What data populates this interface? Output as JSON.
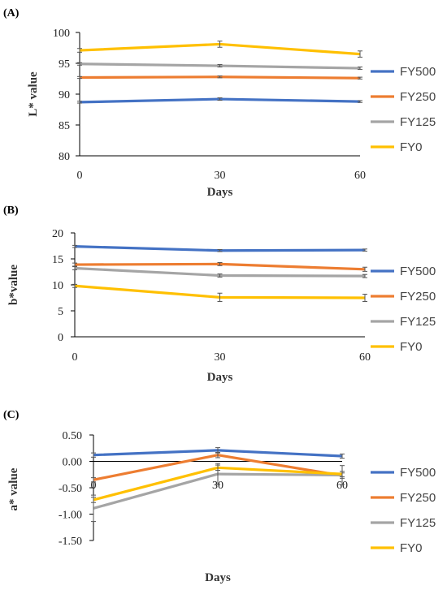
{
  "chart_data": [
    {
      "panel_label": "(A)",
      "type": "line",
      "x": [
        0,
        30,
        60
      ],
      "xlabel": "Days",
      "ylabel": "L* value",
      "xticks": [
        "0",
        "30",
        "60"
      ],
      "yticks": [
        "80",
        "85",
        "90",
        "95",
        "100"
      ],
      "ylim": [
        80,
        100
      ],
      "grid": false,
      "legend": "right",
      "series": [
        {
          "name": "FY500",
          "color": "#4472C4",
          "values": [
            88.7,
            89.2,
            88.8
          ],
          "errors": [
            0.15,
            0.2,
            0.15
          ]
        },
        {
          "name": "FY250",
          "color": "#ED7D31",
          "values": [
            92.7,
            92.8,
            92.6
          ],
          "errors": [
            0.15,
            0.15,
            0.15
          ]
        },
        {
          "name": "FY125",
          "color": "#A5A5A5",
          "values": [
            94.9,
            94.6,
            94.2
          ],
          "errors": [
            0.2,
            0.2,
            0.2
          ]
        },
        {
          "name": "FY0",
          "color": "#FFC000",
          "values": [
            97.1,
            98.1,
            96.5
          ],
          "errors": [
            0.3,
            0.5,
            0.5
          ]
        }
      ]
    },
    {
      "panel_label": "(B)",
      "type": "line",
      "x": [
        0,
        30,
        60
      ],
      "xlabel": "Days",
      "ylabel": "b*value",
      "xticks": [
        "0",
        "30",
        "60"
      ],
      "yticks": [
        "0",
        "5",
        "10",
        "15",
        "20"
      ],
      "ylim": [
        0,
        20
      ],
      "grid": false,
      "legend": "right",
      "series": [
        {
          "name": "FY500",
          "color": "#4472C4",
          "values": [
            17.4,
            16.6,
            16.7
          ],
          "errors": [
            0.2,
            0.2,
            0.2
          ]
        },
        {
          "name": "FY250",
          "color": "#ED7D31",
          "values": [
            13.9,
            14.0,
            13.0
          ],
          "errors": [
            0.3,
            0.3,
            0.4
          ]
        },
        {
          "name": "FY125",
          "color": "#A5A5A5",
          "values": [
            13.2,
            11.8,
            11.7
          ],
          "errors": [
            0.3,
            0.3,
            0.3
          ]
        },
        {
          "name": "FY0",
          "color": "#FFC000",
          "values": [
            9.8,
            7.6,
            7.5
          ],
          "errors": [
            0.3,
            0.8,
            0.7
          ]
        }
      ]
    },
    {
      "panel_label": "(C)",
      "type": "line",
      "x": [
        0,
        30,
        60
      ],
      "xlabel": "Days",
      "ylabel": "a* value",
      "xticks": [
        "0",
        "30",
        "60"
      ],
      "yticks": [
        "-1.50",
        "-1.00",
        "-0.50",
        "0.00",
        "0.50"
      ],
      "ylim": [
        -1.5,
        0.5
      ],
      "grid": false,
      "legend": "right",
      "series": [
        {
          "name": "FY500",
          "color": "#4472C4",
          "values": [
            0.12,
            0.21,
            0.1
          ],
          "errors": [
            0.04,
            0.05,
            0.04
          ]
        },
        {
          "name": "FY250",
          "color": "#ED7D31",
          "values": [
            -0.35,
            0.12,
            -0.27
          ],
          "errors": [
            0.04,
            0.05,
            0.05
          ]
        },
        {
          "name": "FY125",
          "color": "#A5A5A5",
          "values": [
            -0.89,
            -0.24,
            -0.26
          ],
          "errors": [
            0.25,
            0.2,
            0.18
          ]
        },
        {
          "name": "FY0",
          "color": "#FFC000",
          "values": [
            -0.73,
            -0.12,
            -0.24
          ],
          "errors": [
            0.05,
            0.05,
            0.05
          ]
        }
      ]
    }
  ]
}
